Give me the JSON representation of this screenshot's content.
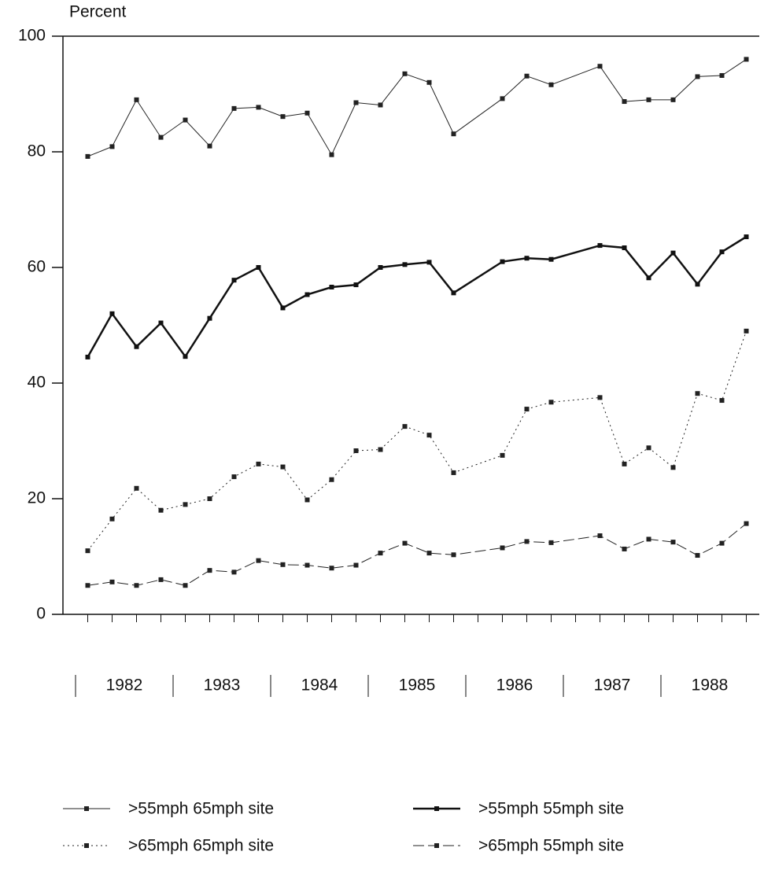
{
  "chart_data": {
    "type": "line",
    "y_label": "Percent",
    "xlim": [
      1981.871,
      1989.008
    ],
    "xticks": [
      {
        "value": 1982.5,
        "label": "1982"
      },
      {
        "value": 1983.5,
        "label": "1983"
      },
      {
        "value": 1984.5,
        "label": "1984"
      },
      {
        "value": 1985.5,
        "label": "1985"
      },
      {
        "value": 1986.5,
        "label": "1986"
      },
      {
        "value": 1987.5,
        "label": "1987"
      },
      {
        "value": 1988.5,
        "label": "1988"
      }
    ],
    "xminorticks": [
      1982.125,
      1982.375,
      1982.625,
      1982.875,
      1983.125,
      1983.375,
      1983.625,
      1983.875,
      1984.125,
      1984.375,
      1984.625,
      1984.875,
      1985.125,
      1985.375,
      1985.625,
      1985.875,
      1986.125,
      1986.375,
      1986.625,
      1986.875,
      1987.125,
      1987.375,
      1987.625,
      1987.875,
      1988.125,
      1988.375,
      1988.625,
      1988.875
    ],
    "ylim": [
      0,
      100
    ],
    "yticks": [
      0,
      20,
      40,
      60,
      80,
      100
    ],
    "x": [
      1982.125,
      1982.375,
      1982.625,
      1982.875,
      1983.125,
      1983.375,
      1983.625,
      1983.875,
      1984.125,
      1984.375,
      1984.625,
      1984.875,
      1985.125,
      1985.375,
      1985.625,
      1985.875,
      1986.375,
      1986.625,
      1986.875,
      1987.375,
      1987.625,
      1987.875,
      1988.125,
      1988.375,
      1988.625,
      1988.875
    ],
    "series": [
      {
        "name": ">55mph 65mph site",
        "color": "#222222",
        "line_width": 1,
        "dash": "solid",
        "values": [
          79.2,
          80.9,
          89,
          82.5,
          85.5,
          81,
          87.5,
          87.7,
          86.1,
          86.7,
          79.5,
          88.5,
          88.1,
          93.5,
          92,
          83.1,
          89.2,
          93.1,
          91.6,
          94.8,
          88.7,
          89,
          89,
          93,
          93.2,
          96
        ]
      },
      {
        "name": ">55mph 55mph site",
        "color": "#111111",
        "line_width": 2.5,
        "dash": "solid",
        "values": [
          44.5,
          52,
          46.3,
          50.4,
          44.6,
          51.2,
          57.8,
          60,
          53,
          55.3,
          56.6,
          57,
          60,
          60.5,
          60.9,
          55.6,
          61,
          61.6,
          61.4,
          63.8,
          63.4,
          58.2,
          62.5,
          57.1,
          62.7,
          65.3
        ]
      },
      {
        "name": ">65mph 65mph site",
        "color": "#222222",
        "line_width": 1,
        "dash": "dotted",
        "values": [
          11,
          16.5,
          21.8,
          18,
          19,
          20,
          23.8,
          26,
          25.5,
          19.8,
          23.3,
          28.3,
          28.5,
          32.5,
          31,
          24.5,
          27.5,
          35.5,
          36.7,
          37.5,
          26,
          28.8,
          25.4,
          38.2,
          37,
          49
        ]
      },
      {
        "name": ">65mph 55mph site",
        "color": "#222222",
        "line_width": 1,
        "dash": "dashed",
        "values": [
          5,
          5.6,
          5,
          6,
          5,
          7.6,
          7.3,
          9.3,
          8.6,
          8.5,
          8,
          8.5,
          10.6,
          12.3,
          10.6,
          10.3,
          11.5,
          12.6,
          12.4,
          13.6,
          11.3,
          13,
          12.5,
          10.2,
          12.3,
          15.7
        ]
      }
    ]
  }
}
